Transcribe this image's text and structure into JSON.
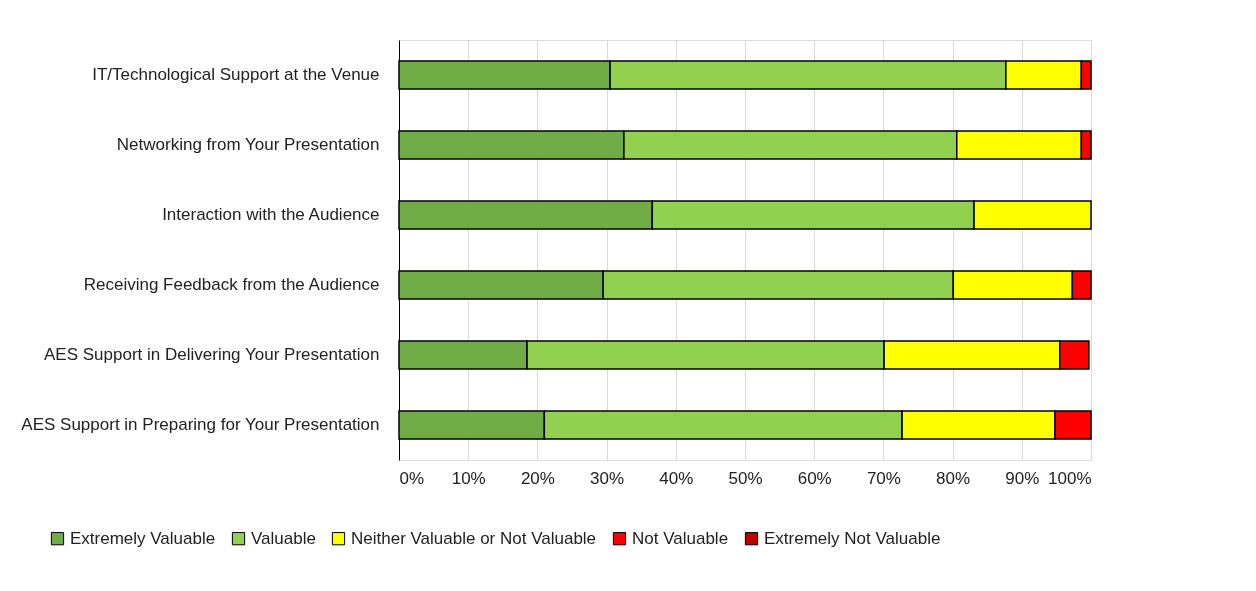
{
  "chart_data": {
    "type": "bar",
    "orientation": "horizontal",
    "stacked": true,
    "categories": [
      "IT/Technological Support at the Venue",
      "Networking from Your Presentation",
      "Interaction with the Audience",
      "Receiving Feedback from the Audience",
      "AES Support in Delivering Your Presentation",
      "AES Support in Preparing for Your Presentation"
    ],
    "series": [
      {
        "name": "Extremely Valuable",
        "color": "#70ad47",
        "values": [
          30.5,
          32.5,
          36.6,
          29.5,
          18.5,
          21.0
        ]
      },
      {
        "name": "Valuable",
        "color": "#92d050",
        "values": [
          57.2,
          48.1,
          46.5,
          50.6,
          51.6,
          51.7
        ]
      },
      {
        "name": "Neither Valuable or Not Valuable",
        "color": "#ffff00",
        "values": [
          10.9,
          18.0,
          16.9,
          17.2,
          25.4,
          22.1
        ]
      },
      {
        "name": "Not Valuable",
        "color": "#ff0000",
        "values": [
          1.4,
          1.4,
          0,
          2.7,
          4.2,
          5.2
        ]
      },
      {
        "name": "Extremely Not Valuable",
        "color": "#c00000",
        "values": [
          0,
          0,
          0,
          0,
          0,
          0
        ]
      }
    ],
    "xlim": [
      0,
      100
    ],
    "xticks": [
      {
        "value": 0,
        "label": "0%"
      },
      {
        "value": 10,
        "label": "10%"
      },
      {
        "value": 20,
        "label": "20%"
      },
      {
        "value": 30,
        "label": "30%"
      },
      {
        "value": 40,
        "label": "40%"
      },
      {
        "value": 50,
        "label": "50%"
      },
      {
        "value": 60,
        "label": "60%"
      },
      {
        "value": 70,
        "label": "70%"
      },
      {
        "value": 80,
        "label": "80%"
      },
      {
        "value": 90,
        "label": "90%"
      },
      {
        "value": 100,
        "label": "100%"
      }
    ],
    "grid": "x",
    "legend": "bottom"
  }
}
